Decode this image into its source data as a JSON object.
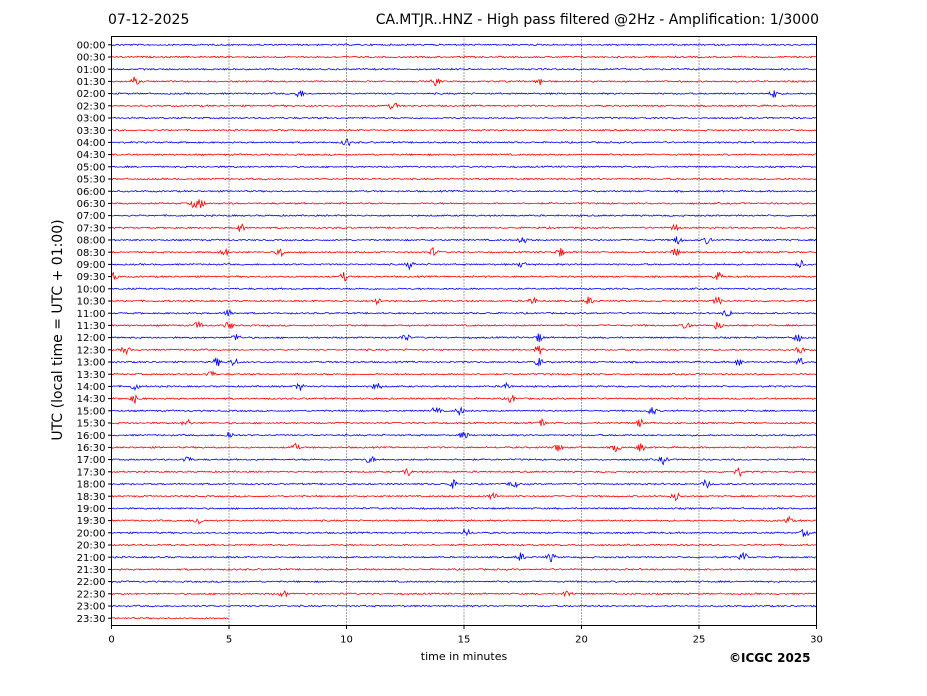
{
  "header": {
    "date": "07-12-2025",
    "title": "CA.MTJR..HNZ - High pass filtered @2Hz - Amplification: 1/3000"
  },
  "footer": {
    "copyright": "©ICGC 2025"
  },
  "chart_data": {
    "type": "line",
    "title": "CA.MTJR..HNZ - High pass filtered @2Hz - Amplification: 1/3000",
    "xlabel": "time in minutes",
    "ylabel": "UTC (local time = UTC + 01:00)",
    "xlim": [
      0,
      30
    ],
    "x_ticks": [
      0,
      5,
      10,
      15,
      20,
      25,
      30
    ],
    "vertical_gridlines": [
      5,
      10,
      15,
      20,
      25
    ],
    "grid": "vertical dotted",
    "rows": [
      "00:00",
      "00:30",
      "01:00",
      "01:30",
      "02:00",
      "02:30",
      "03:00",
      "03:30",
      "04:00",
      "04:30",
      "05:00",
      "05:30",
      "06:00",
      "06:30",
      "07:00",
      "07:30",
      "08:00",
      "08:30",
      "09:00",
      "09:30",
      "10:00",
      "10:30",
      "11:00",
      "11:30",
      "12:00",
      "12:30",
      "13:00",
      "13:30",
      "14:00",
      "14:30",
      "15:00",
      "15:30",
      "16:00",
      "16:30",
      "17:00",
      "17:30",
      "18:00",
      "18:30",
      "19:00",
      "19:30",
      "20:00",
      "20:30",
      "21:00",
      "21:30",
      "22:00",
      "22:30",
      "23:00",
      "23:30"
    ],
    "row_colors": [
      "#0000ff",
      "#ff0000"
    ],
    "last_trace_end_minute": 5,
    "events": [
      {
        "row": 3,
        "minutes": [
          1.0,
          13.8,
          18.2
        ]
      },
      {
        "row": 4,
        "minutes": [
          8.0,
          28.2
        ]
      },
      {
        "row": 5,
        "minutes": [
          12.0
        ]
      },
      {
        "row": 8,
        "minutes": [
          10.0
        ]
      },
      {
        "row": 13,
        "minutes": [
          3.5,
          3.8
        ]
      },
      {
        "row": 15,
        "minutes": [
          5.5,
          24.0
        ]
      },
      {
        "row": 16,
        "minutes": [
          17.5,
          24.1,
          25.4
        ]
      },
      {
        "row": 17,
        "minutes": [
          4.8,
          7.2,
          13.7,
          19.1,
          24.0
        ]
      },
      {
        "row": 18,
        "minutes": [
          12.7,
          17.5,
          29.3
        ]
      },
      {
        "row": 19,
        "minutes": [
          0.1,
          9.9,
          25.8
        ]
      },
      {
        "row": 21,
        "minutes": [
          11.3,
          17.9,
          20.3,
          25.8
        ]
      },
      {
        "row": 22,
        "minutes": [
          5.0,
          26.2
        ]
      },
      {
        "row": 23,
        "minutes": [
          3.7,
          5.0,
          24.5,
          25.8
        ]
      },
      {
        "row": 24,
        "minutes": [
          5.3,
          12.5,
          18.2,
          29.2
        ]
      },
      {
        "row": 25,
        "minutes": [
          0.6,
          18.2,
          29.3
        ]
      },
      {
        "row": 26,
        "minutes": [
          4.5,
          5.2,
          18.2,
          26.7,
          29.3
        ]
      },
      {
        "row": 27,
        "minutes": [
          4.2
        ]
      },
      {
        "row": 28,
        "minutes": [
          1.0,
          8.0,
          11.3,
          16.8
        ]
      },
      {
        "row": 29,
        "minutes": [
          1.0,
          17.0
        ]
      },
      {
        "row": 30,
        "minutes": [
          13.8,
          14.8,
          23.0
        ]
      },
      {
        "row": 31,
        "minutes": [
          3.2,
          18.3,
          22.5
        ]
      },
      {
        "row": 32,
        "minutes": [
          5.0,
          15.0
        ]
      },
      {
        "row": 33,
        "minutes": [
          7.8,
          19.0,
          21.5,
          22.5
        ]
      },
      {
        "row": 34,
        "minutes": [
          3.2,
          11.0,
          23.5
        ]
      },
      {
        "row": 35,
        "minutes": [
          12.6,
          26.7
        ]
      },
      {
        "row": 36,
        "minutes": [
          14.5,
          17.1,
          25.3
        ]
      },
      {
        "row": 37,
        "minutes": [
          16.2,
          24.0
        ]
      },
      {
        "row": 39,
        "minutes": [
          3.7,
          28.8
        ]
      },
      {
        "row": 40,
        "minutes": [
          15.1,
          29.5
        ]
      },
      {
        "row": 42,
        "minutes": [
          17.4,
          18.7,
          26.9
        ]
      },
      {
        "row": 45,
        "minutes": [
          7.3,
          19.4
        ]
      }
    ]
  }
}
